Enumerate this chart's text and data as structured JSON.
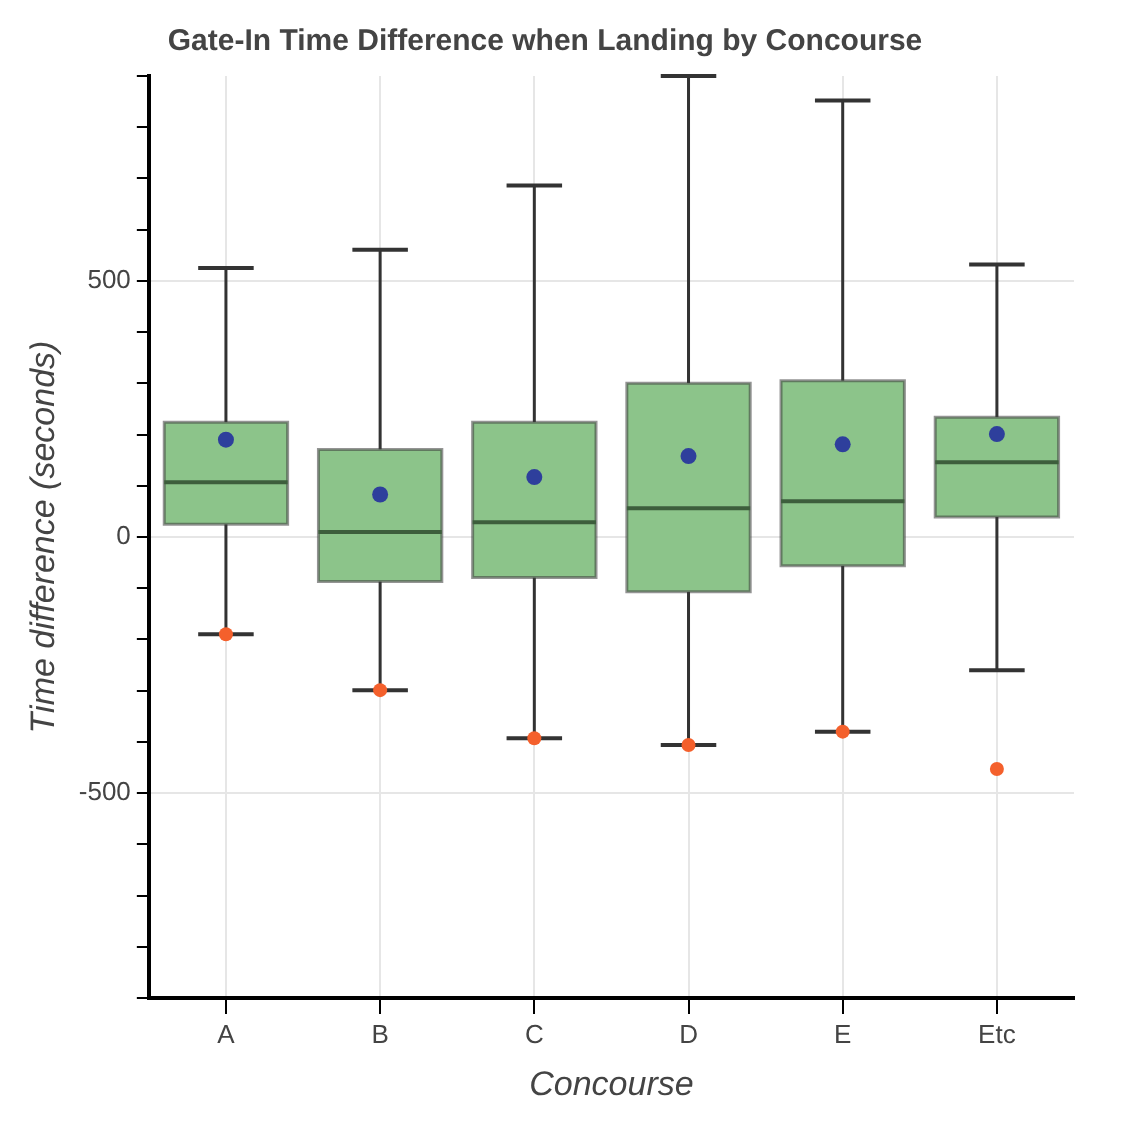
{
  "chart_data": {
    "type": "box",
    "title": "Gate-In Time Difference when Landing by Concourse",
    "xlabel": "Concourse",
    "ylabel": "Time difference (seconds)",
    "categories": [
      "A",
      "B",
      "C",
      "D",
      "E",
      "Etc"
    ],
    "series": [
      {
        "color": "#8cc48a",
        "boxes": [
          {
            "low": -190,
            "q1": 25,
            "median": 107,
            "q3": 224,
            "high": 525,
            "mean": 190,
            "outliers": [
              -190
            ]
          },
          {
            "low": -299,
            "q1": -87,
            "median": 10,
            "q3": 171,
            "high": 561,
            "mean": 83,
            "outliers": [
              -299
            ]
          },
          {
            "low": -393,
            "q1": -79,
            "median": 29,
            "q3": 224,
            "high": 686,
            "mean": 117,
            "outliers": [
              -393
            ]
          },
          {
            "low": -406,
            "q1": -107,
            "median": 56,
            "q3": 300,
            "high": 900,
            "mean": 158,
            "outliers": [
              -406
            ]
          },
          {
            "low": -380,
            "q1": -56,
            "median": 70,
            "q3": 305,
            "high": 852,
            "mean": 181,
            "outliers": [
              -380
            ]
          },
          {
            "low": -260,
            "q1": 39,
            "median": 146,
            "q3": 234,
            "high": 532,
            "mean": 201,
            "outliers": [
              -453
            ]
          }
        ]
      }
    ],
    "ylim": [
      -900,
      900
    ],
    "yticks": [
      {
        "value": -900,
        "label": null
      },
      {
        "value": -800,
        "label": null
      },
      {
        "value": -700,
        "label": null
      },
      {
        "value": -600,
        "label": null
      },
      {
        "value": -500,
        "label": "-500"
      },
      {
        "value": -400,
        "label": null
      },
      {
        "value": -300,
        "label": null
      },
      {
        "value": -200,
        "label": null
      },
      {
        "value": -100,
        "label": null
      },
      0,
      {
        "value": 100,
        "label": null
      },
      {
        "value": 200,
        "label": null
      },
      {
        "value": 300,
        "label": null
      },
      {
        "value": 400,
        "label": null
      },
      500,
      {
        "value": 600,
        "label": null
      },
      {
        "value": 700,
        "label": null
      },
      {
        "value": 800,
        "label": null
      },
      {
        "value": 900,
        "label": null
      }
    ],
    "grid": true,
    "legend": false
  }
}
